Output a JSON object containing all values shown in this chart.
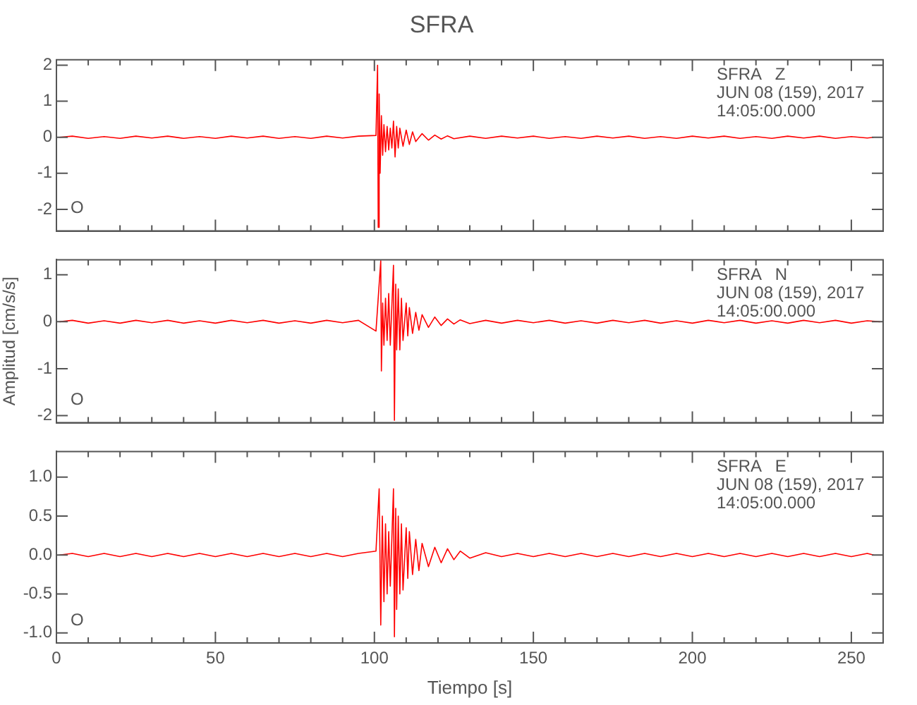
{
  "chart_data": [
    {
      "type": "line",
      "title": "SFRA",
      "xlim": [
        0,
        260
      ],
      "xticks": [
        0,
        {
          "value": 10,
          "label": null
        },
        {
          "value": 20,
          "label": null
        },
        {
          "value": 30,
          "label": null
        },
        {
          "value": 40,
          "label": null
        },
        50,
        {
          "value": 60,
          "label": null
        },
        {
          "value": 70,
          "label": null
        },
        {
          "value": 80,
          "label": null
        },
        {
          "value": 90,
          "label": null
        },
        100,
        {
          "value": 110,
          "label": null
        },
        {
          "value": 120,
          "label": null
        },
        {
          "value": 130,
          "label": null
        },
        {
          "value": 140,
          "label": null
        },
        150,
        {
          "value": 160,
          "label": null
        },
        {
          "value": 170,
          "label": null
        },
        {
          "value": 180,
          "label": null
        },
        {
          "value": 190,
          "label": null
        },
        200,
        {
          "value": 210,
          "label": null
        },
        {
          "value": 220,
          "label": null
        },
        {
          "value": 230,
          "label": null
        },
        {
          "value": 240,
          "label": null
        },
        250
      ],
      "ylim": [
        -2.6,
        2.15
      ],
      "yticks": [
        -2,
        -1,
        0,
        1,
        2
      ],
      "tick_labels": "y",
      "annotations": [
        "SFRA   Z",
        "JUN 08 (159), 2017",
        "14:05:00.000",
        "O"
      ],
      "series": [
        {
          "color": "#ff0000",
          "x": [
            1,
            5,
            10,
            15,
            20,
            25,
            30,
            35,
            40,
            45,
            50,
            55,
            60,
            65,
            70,
            75,
            80,
            85,
            90,
            95,
            100.5,
            101,
            101.2,
            101.5,
            101.8,
            102.2,
            102.6,
            103,
            103.5,
            104,
            104.5,
            105,
            105.5,
            106,
            106.5,
            107,
            107.5,
            108,
            109,
            110,
            111,
            112,
            113,
            115,
            117,
            119,
            121,
            123,
            125,
            130,
            135,
            140,
            145,
            150,
            155,
            160,
            165,
            170,
            175,
            180,
            185,
            190,
            195,
            200,
            205,
            210,
            215,
            220,
            225,
            230,
            235,
            240,
            245,
            250,
            255,
            257
          ],
          "values": [
            0,
            0.03,
            -0.03,
            0.02,
            -0.03,
            0.03,
            -0.02,
            0.03,
            -0.03,
            0.02,
            -0.03,
            0.03,
            -0.02,
            0.03,
            -0.03,
            0.02,
            -0.03,
            0.03,
            -0.02,
            0.03,
            0.05,
            2.0,
            -2.5,
            1.2,
            -1.0,
            0.6,
            -0.5,
            0.35,
            -0.4,
            0.3,
            -0.35,
            0.25,
            -0.3,
            0.45,
            -0.55,
            0.3,
            -0.3,
            0.25,
            -0.25,
            0.2,
            -0.2,
            0.15,
            -0.12,
            0.1,
            -0.08,
            0.06,
            -0.05,
            0.04,
            -0.04,
            0.03,
            -0.03,
            0.03,
            -0.02,
            0.03,
            -0.03,
            0.02,
            -0.03,
            0.03,
            -0.02,
            0.03,
            -0.03,
            0.02,
            -0.03,
            0.03,
            -0.02,
            0.03,
            -0.03,
            0.02,
            -0.03,
            0.03,
            -0.02,
            0.03,
            -0.03,
            0.02,
            -0.02,
            0
          ]
        }
      ]
    },
    {
      "type": "line",
      "ylabel": "Amplitud [cm/s/s]",
      "xlim": [
        0,
        260
      ],
      "xticks": [
        0,
        {
          "value": 10,
          "label": null
        },
        {
          "value": 20,
          "label": null
        },
        {
          "value": 30,
          "label": null
        },
        {
          "value": 40,
          "label": null
        },
        50,
        {
          "value": 60,
          "label": null
        },
        {
          "value": 70,
          "label": null
        },
        {
          "value": 80,
          "label": null
        },
        {
          "value": 90,
          "label": null
        },
        100,
        {
          "value": 110,
          "label": null
        },
        {
          "value": 120,
          "label": null
        },
        {
          "value": 130,
          "label": null
        },
        {
          "value": 140,
          "label": null
        },
        150,
        {
          "value": 160,
          "label": null
        },
        {
          "value": 170,
          "label": null
        },
        {
          "value": 180,
          "label": null
        },
        {
          "value": 190,
          "label": null
        },
        200,
        {
          "value": 210,
          "label": null
        },
        {
          "value": 220,
          "label": null
        },
        {
          "value": 230,
          "label": null
        },
        {
          "value": 240,
          "label": null
        },
        250
      ],
      "ylim": [
        -2.15,
        1.32
      ],
      "yticks": [
        -2,
        -1,
        0,
        1
      ],
      "tick_labels": "y",
      "annotations": [
        "SFRA   N",
        "JUN 08 (159), 2017",
        "14:05:00.000",
        "O"
      ],
      "series": [
        {
          "color": "#ff0000",
          "x": [
            1,
            5,
            10,
            15,
            20,
            25,
            30,
            35,
            40,
            45,
            50,
            55,
            60,
            65,
            70,
            75,
            80,
            85,
            90,
            95,
            100.5,
            101,
            102,
            102.2,
            102.6,
            103,
            103.5,
            104,
            104.5,
            105,
            106,
            106.3,
            106.7,
            107,
            107.5,
            108,
            108.5,
            109,
            110,
            110.5,
            111,
            112,
            113,
            114,
            115,
            117,
            119,
            121,
            123,
            125,
            127,
            130,
            135,
            140,
            145,
            150,
            155,
            160,
            165,
            170,
            175,
            180,
            185,
            190,
            195,
            200,
            205,
            210,
            215,
            220,
            225,
            230,
            235,
            240,
            245,
            250,
            255,
            259
          ],
          "values": [
            0,
            0.03,
            -0.03,
            0.02,
            -0.03,
            0.03,
            -0.02,
            0.03,
            -0.03,
            0.02,
            -0.03,
            0.03,
            -0.02,
            0.03,
            -0.03,
            0.02,
            -0.03,
            0.03,
            -0.02,
            0.03,
            -0.2,
            0.3,
            1.3,
            -1.05,
            0.4,
            -0.5,
            0.5,
            -0.4,
            0.6,
            -0.5,
            1.2,
            -2.1,
            0.8,
            -0.6,
            0.7,
            -0.6,
            0.5,
            -0.4,
            0.4,
            -0.3,
            0.3,
            -0.25,
            0.2,
            -0.18,
            0.15,
            -0.12,
            0.1,
            -0.08,
            0.06,
            -0.05,
            0.04,
            -0.04,
            0.03,
            -0.03,
            0.03,
            -0.02,
            0.03,
            -0.03,
            0.02,
            -0.03,
            0.03,
            -0.02,
            0.03,
            -0.03,
            0.02,
            -0.03,
            0.03,
            -0.02,
            0.03,
            -0.03,
            0.02,
            -0.03,
            0.03,
            -0.02,
            0.03,
            -0.03,
            0.02,
            0
          ]
        }
      ]
    },
    {
      "type": "line",
      "xlabel": "Tiempo [s]",
      "xlim": [
        0,
        260
      ],
      "xticks": [
        0,
        {
          "value": 10,
          "label": null
        },
        {
          "value": 20,
          "label": null
        },
        {
          "value": 30,
          "label": null
        },
        {
          "value": 40,
          "label": null
        },
        50,
        {
          "value": 60,
          "label": null
        },
        {
          "value": 70,
          "label": null
        },
        {
          "value": 80,
          "label": null
        },
        {
          "value": 90,
          "label": null
        },
        100,
        {
          "value": 110,
          "label": null
        },
        {
          "value": 120,
          "label": null
        },
        {
          "value": 130,
          "label": null
        },
        {
          "value": 140,
          "label": null
        },
        150,
        {
          "value": 160,
          "label": null
        },
        {
          "value": 170,
          "label": null
        },
        {
          "value": 180,
          "label": null
        },
        {
          "value": 190,
          "label": null
        },
        200,
        {
          "value": 210,
          "label": null
        },
        {
          "value": 220,
          "label": null
        },
        {
          "value": 230,
          "label": null
        },
        {
          "value": 240,
          "label": null
        },
        250
      ],
      "ylim": [
        -1.13,
        1.33
      ],
      "yticks": [
        {
          "value": -1,
          "label": "-1.0"
        },
        {
          "value": -0.5,
          "label": "-0.5"
        },
        {
          "value": 0,
          "label": "0.0"
        },
        {
          "value": 0.5,
          "label": "0.5"
        },
        {
          "value": 1,
          "label": "1.0"
        }
      ],
      "annotations": [
        "SFRA   E",
        "JUN 08 (159), 2017",
        "14:05:00.000",
        "O"
      ],
      "series": [
        {
          "color": "#ff0000",
          "x": [
            1,
            5,
            10,
            15,
            20,
            25,
            30,
            35,
            40,
            45,
            50,
            55,
            60,
            65,
            70,
            75,
            80,
            85,
            90,
            95,
            100.5,
            101.5,
            102,
            102.5,
            103,
            103.5,
            104,
            104.5,
            105,
            106,
            106.3,
            106.7,
            107,
            107.5,
            108,
            108.5,
            109,
            110,
            110.5,
            111,
            112,
            113,
            114,
            115,
            117,
            119,
            121,
            123,
            125,
            127,
            130,
            135,
            140,
            145,
            150,
            155,
            160,
            165,
            170,
            175,
            180,
            185,
            190,
            195,
            200,
            205,
            210,
            215,
            220,
            225,
            230,
            235,
            240,
            245,
            250,
            255,
            257
          ],
          "values": [
            0,
            0.02,
            -0.02,
            0.02,
            -0.02,
            0.02,
            -0.02,
            0.02,
            -0.02,
            0.02,
            -0.02,
            0.02,
            -0.02,
            0.02,
            -0.02,
            0.02,
            -0.02,
            0.02,
            -0.02,
            0.02,
            0.05,
            0.85,
            -0.9,
            0.5,
            -0.6,
            0.4,
            -0.5,
            0.3,
            -0.4,
            0.85,
            -1.05,
            0.6,
            -0.7,
            0.5,
            -0.5,
            0.4,
            -0.45,
            0.35,
            -0.3,
            0.3,
            -0.25,
            0.2,
            -0.2,
            0.15,
            -0.15,
            0.1,
            -0.1,
            0.08,
            -0.06,
            0.05,
            -0.04,
            0.03,
            -0.02,
            0.02,
            -0.02,
            0.02,
            -0.02,
            0.02,
            -0.02,
            0.02,
            -0.02,
            0.02,
            -0.02,
            0.02,
            -0.02,
            0.02,
            -0.02,
            0.02,
            -0.02,
            0.02,
            -0.02,
            0.02,
            -0.02,
            0.02,
            -0.02,
            0.02,
            0
          ]
        }
      ]
    }
  ]
}
